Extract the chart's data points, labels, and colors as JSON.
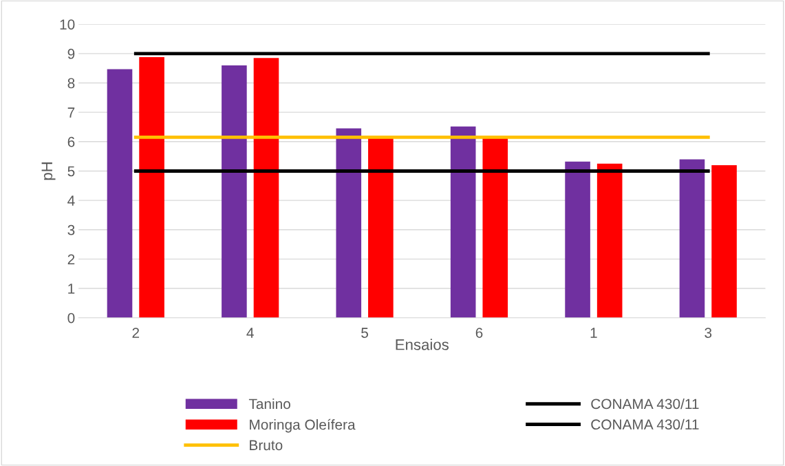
{
  "chart_data": {
    "type": "bar",
    "xlabel": "Ensaios",
    "ylabel": "pH",
    "categories": [
      "2",
      "4",
      "5",
      "6",
      "1",
      "3"
    ],
    "series": [
      {
        "name": "Tanino",
        "color": "#7030a0",
        "values": [
          8.47,
          8.6,
          6.45,
          6.52,
          5.32,
          5.4
        ]
      },
      {
        "name": "Moringa Oleífera",
        "color": "#ff0000",
        "values": [
          8.88,
          8.85,
          6.12,
          6.12,
          5.25,
          5.2
        ]
      },
      {
        "name": "Bruto",
        "type": "line",
        "color": "#ffc000",
        "values": [
          6.15,
          6.15,
          6.15,
          6.15,
          6.15,
          6.15
        ]
      },
      {
        "name": "CONAMA 430/11",
        "type": "line",
        "color": "#000000",
        "values": [
          9,
          9,
          9,
          9,
          9,
          9
        ]
      },
      {
        "name": "CONAMA 430/11",
        "type": "line",
        "color": "#000000",
        "values": [
          5,
          5,
          5,
          5,
          5,
          5
        ]
      }
    ],
    "ylim": [
      0,
      10
    ],
    "yticks": [
      0,
      1,
      2,
      3,
      4,
      5,
      6,
      7,
      8,
      9,
      10
    ],
    "grid": "y",
    "legend": "bottom"
  }
}
